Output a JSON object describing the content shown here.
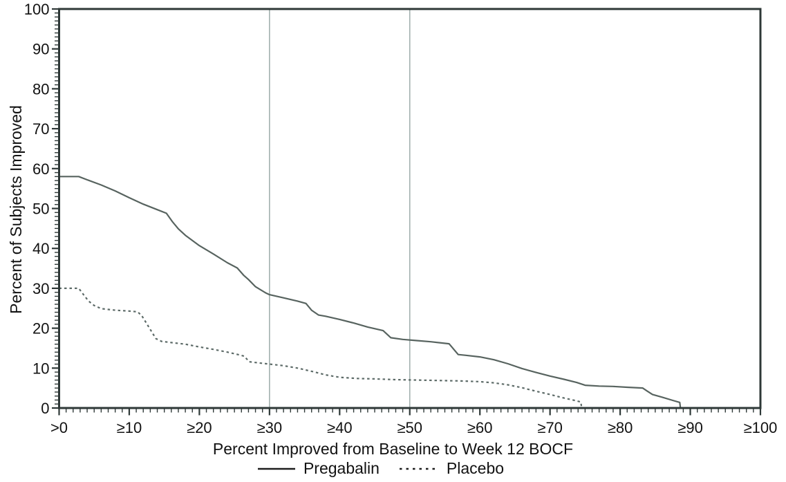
{
  "chart_data": {
    "type": "line",
    "title": "",
    "xlabel": "Percent Improved from Baseline to Week 12 BOCF",
    "ylabel": "Percent of Subjects Improved",
    "xlim": [
      0,
      100
    ],
    "ylim": [
      0,
      100
    ],
    "grid": false,
    "legend_position": "bottom-center",
    "x_tick_values": [
      0,
      10,
      20,
      30,
      40,
      50,
      60,
      70,
      80,
      90,
      100
    ],
    "x_tick_labels": [
      ">0",
      "≥10",
      "≥20",
      "≥30",
      "≥40",
      "≥50",
      "≥60",
      "≥70",
      "≥80",
      "≥90",
      "≥100"
    ],
    "y_tick_values": [
      0,
      10,
      20,
      30,
      40,
      50,
      60,
      70,
      80,
      90,
      100
    ],
    "y_tick_labels": [
      "0",
      "10",
      "20",
      "30",
      "40",
      "50",
      "60",
      "70",
      "80",
      "90",
      "100"
    ],
    "minor_tick_step": 1,
    "reference_lines_x": [
      30,
      50
    ],
    "series": [
      {
        "name": "Pregabalin",
        "line_style": "solid",
        "color": "#57635f",
        "points": [
          [
            0,
            58
          ],
          [
            2.8,
            58
          ],
          [
            4,
            57.2
          ],
          [
            6,
            55.9
          ],
          [
            8,
            54.4
          ],
          [
            10,
            52.7
          ],
          [
            12,
            51.1
          ],
          [
            14,
            49.7
          ],
          [
            15.3,
            48.8
          ],
          [
            16.2,
            46.6
          ],
          [
            17,
            44.9
          ],
          [
            18,
            43.3
          ],
          [
            20,
            40.7
          ],
          [
            22,
            38.6
          ],
          [
            24,
            36.4
          ],
          [
            25.4,
            35.1
          ],
          [
            26.3,
            33.3
          ],
          [
            27,
            32.2
          ],
          [
            28,
            30.4
          ],
          [
            29.5,
            28.8
          ],
          [
            30,
            28.4
          ],
          [
            32,
            27.6
          ],
          [
            34,
            26.8
          ],
          [
            35.2,
            26.2
          ],
          [
            36,
            24.5
          ],
          [
            37,
            23.3
          ],
          [
            38,
            23.0
          ],
          [
            40,
            22.2
          ],
          [
            42,
            21.3
          ],
          [
            44,
            20.3
          ],
          [
            46.2,
            19.4
          ],
          [
            47.3,
            17.6
          ],
          [
            49,
            17.2
          ],
          [
            51,
            16.9
          ],
          [
            53,
            16.6
          ],
          [
            55.6,
            16.1
          ],
          [
            56.9,
            13.4
          ],
          [
            58,
            13.2
          ],
          [
            60,
            12.8
          ],
          [
            62,
            12.1
          ],
          [
            64,
            11.1
          ],
          [
            66,
            9.9
          ],
          [
            68,
            8.9
          ],
          [
            70,
            8.0
          ],
          [
            72,
            7.2
          ],
          [
            73.8,
            6.4
          ],
          [
            75,
            5.7
          ],
          [
            77,
            5.5
          ],
          [
            79,
            5.4
          ],
          [
            81,
            5.2
          ],
          [
            83.2,
            5.0
          ],
          [
            83.8,
            4.3
          ],
          [
            84.6,
            3.4
          ],
          [
            86,
            2.7
          ],
          [
            87.5,
            1.9
          ],
          [
            88.5,
            1.4
          ],
          [
            88.6,
            0
          ]
        ]
      },
      {
        "name": "Placebo",
        "line_style": "dotted",
        "color": "#5c6a67",
        "points": [
          [
            0,
            30
          ],
          [
            2.8,
            30
          ],
          [
            3.4,
            28.6
          ],
          [
            4.2,
            26.8
          ],
          [
            5,
            25.7
          ],
          [
            6,
            24.9
          ],
          [
            8,
            24.5
          ],
          [
            10,
            24.3
          ],
          [
            11.2,
            24.1
          ],
          [
            11.8,
            23.1
          ],
          [
            12.4,
            21.4
          ],
          [
            13.1,
            19.4
          ],
          [
            13.8,
            17.4
          ],
          [
            14.6,
            16.7
          ],
          [
            16,
            16.4
          ],
          [
            18,
            16.0
          ],
          [
            20,
            15.3
          ],
          [
            22,
            14.7
          ],
          [
            24,
            14.0
          ],
          [
            25.5,
            13.4
          ],
          [
            26.4,
            13.0
          ],
          [
            27.1,
            11.6
          ],
          [
            28.5,
            11.3
          ],
          [
            30,
            11.0
          ],
          [
            32,
            10.6
          ],
          [
            34,
            10.0
          ],
          [
            36,
            9.2
          ],
          [
            38,
            8.3
          ],
          [
            40,
            7.7
          ],
          [
            42.5,
            7.4
          ],
          [
            45,
            7.3
          ],
          [
            48,
            7.1
          ],
          [
            51,
            7.0
          ],
          [
            54,
            6.9
          ],
          [
            57,
            6.8
          ],
          [
            60,
            6.6
          ],
          [
            62,
            6.3
          ],
          [
            64,
            5.8
          ],
          [
            66,
            5.1
          ],
          [
            68,
            4.2
          ],
          [
            70,
            3.4
          ],
          [
            72,
            2.5
          ],
          [
            73.5,
            1.9
          ],
          [
            74.4,
            1.5
          ],
          [
            74.5,
            0
          ]
        ]
      }
    ]
  },
  "colors": {
    "background": "#ffffff",
    "frame": "#2e3837",
    "text": "#121212",
    "reference_line": "#a2b0af",
    "legend_swatch": "#1c1c1c"
  }
}
